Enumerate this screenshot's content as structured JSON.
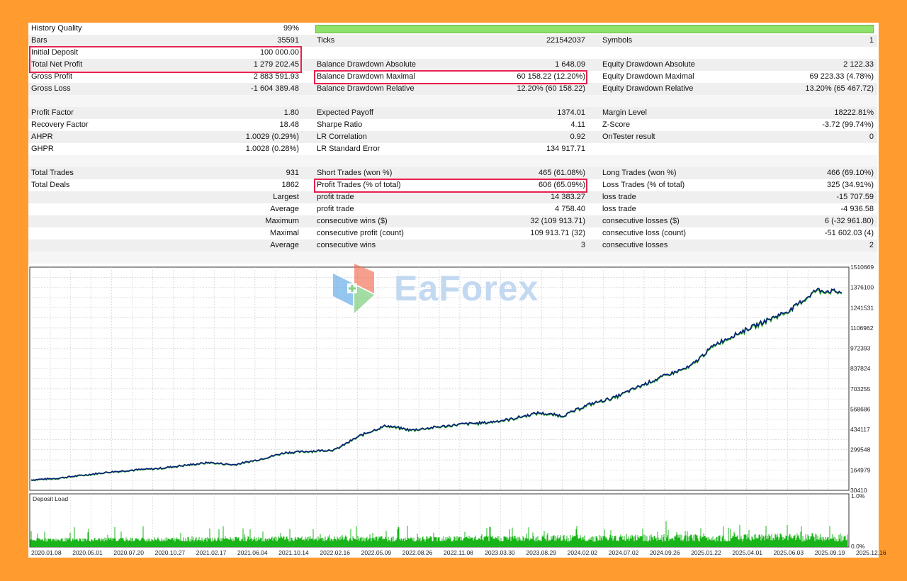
{
  "report": {
    "history_quality": {
      "label": "History Quality",
      "value": "99%"
    },
    "row_bars": {
      "c1l": "Bars",
      "c1v": "35591",
      "c2l": "Ticks",
      "c2v": "221542037",
      "c3l": "Symbols",
      "c3v": "1"
    },
    "row_deposit": {
      "c1l": "Initial Deposit",
      "c1v": "100 000.00"
    },
    "row_net": {
      "c1l": "Total Net Profit",
      "c1v": "1 279 202.45",
      "c2l": "Balance Drawdown Absolute",
      "c2v": "1 648.09",
      "c3l": "Equity Drawdown Absolute",
      "c3v": "2 122.33"
    },
    "row_gross_profit": {
      "c1l": "Gross Profit",
      "c1v": "2 883 591.93",
      "c2l": "Balance Drawdown Maximal",
      "c2v": "60 158.22 (12.20%)",
      "c3l": "Equity Drawdown Maximal",
      "c3v": "69 223.33 (4.78%)"
    },
    "row_gross_loss": {
      "c1l": "Gross Loss",
      "c1v": "-1 604 389.48",
      "c2l": "Balance Drawdown Relative",
      "c2v": "12.20% (60 158.22)",
      "c3l": "Equity Drawdown Relative",
      "c3v": "13.20% (65 467.72)"
    },
    "row_pf": {
      "c1l": "Profit Factor",
      "c1v": "1.80",
      "c2l": "Expected Payoff",
      "c2v": "1374.01",
      "c3l": "Margin Level",
      "c3v": "18222.81%"
    },
    "row_rf": {
      "c1l": "Recovery Factor",
      "c1v": "18.48",
      "c2l": "Sharpe Ratio",
      "c2v": "4.11",
      "c3l": "Z-Score",
      "c3v": "-3.72 (99.74%)"
    },
    "row_ahpr": {
      "c1l": "AHPR",
      "c1v": "1.0029 (0.29%)",
      "c2l": "LR Correlation",
      "c2v": "0.92",
      "c3l": "OnTester result",
      "c3v": "0"
    },
    "row_ghpr": {
      "c1l": "GHPR",
      "c1v": "1.0028 (0.28%)",
      "c2l": "LR Standard Error",
      "c2v": "134 917.71"
    },
    "row_trades": {
      "c1l": "Total Trades",
      "c1v": "931",
      "c2l": "Short Trades (won %)",
      "c2v": "465 (61.08%)",
      "c3l": "Long Trades (won %)",
      "c3v": "466 (69.10%)"
    },
    "row_deals": {
      "c1l": "Total Deals",
      "c1v": "1862",
      "c2l": "Profit Trades (% of total)",
      "c2v": "606 (65.09%)",
      "c3l": "Loss Trades (% of total)",
      "c3v": "325 (34.91%)"
    },
    "row_largest": {
      "c1r": "Largest",
      "c2l": "profit trade",
      "c2v": "14 383.27",
      "c3l": "loss trade",
      "c3v": "-15 707.59"
    },
    "row_average": {
      "c1r": "Average",
      "c2l": "profit trade",
      "c2v": "4 758.40",
      "c3l": "loss trade",
      "c3v": "-4 936.58"
    },
    "row_maximum": {
      "c1r": "Maximum",
      "c2l": "consecutive wins ($)",
      "c2v": "32 (109 913.71)",
      "c3l": "consecutive losses ($)",
      "c3v": "6 (-32 961.80)"
    },
    "row_maximal": {
      "c1r": "Maximal",
      "c2l": "consecutive profit (count)",
      "c2v": "109 913.71 (32)",
      "c3l": "consecutive loss (count)",
      "c3v": "-51 602.03 (4)"
    },
    "row_average2": {
      "c1r": "Average",
      "c2l": "consecutive wins",
      "c2v": "3",
      "c3l": "consecutive losses",
      "c3v": "2"
    }
  },
  "watermark": {
    "text": "EaForex"
  },
  "colors": {
    "balance": "#0a1f7a",
    "equity": "#1fa51f",
    "deposit_load": "#19b419",
    "highlight": "#e8204d",
    "quality_bar": "#8fe36a"
  },
  "chart_data": {
    "type": "line",
    "title": "",
    "y_ticks": [
      "1510669",
      "1376100",
      "1241531",
      "1106962",
      "972393",
      "837824",
      "703255",
      "568686",
      "434117",
      "299548",
      "164979",
      "30410"
    ],
    "ylim": [
      30410,
      1510669
    ],
    "x_ticks": [
      "2020.01.08",
      "2020.05.01",
      "2020.07.20",
      "2020.10.27",
      "2021.02.17",
      "2021.06.04",
      "2021.10.14",
      "2022.02.16",
      "2022.05.09",
      "2022.08.26",
      "2022.11.08",
      "2023.03.30",
      "2023.08.29",
      "2024.02.02",
      "2024.07.02",
      "2024.09.26",
      "2025.01.22",
      "2025.04.01",
      "2025.06.03",
      "2025.09.19",
      "2025.12.16"
    ],
    "series": [
      {
        "values": [
          100000,
          110000,
          130000,
          150000,
          165000,
          175000,
          195000,
          215000,
          200000,
          235000,
          280000,
          290000,
          300000,
          395000,
          460000,
          430000,
          450000,
          470000,
          480000,
          505000,
          545000,
          525000,
          600000,
          645000,
          720000,
          790000,
          850000,
          1000000,
          1080000,
          1155000,
          1230000,
          1360000,
          1345000
        ]
      }
    ],
    "deposit_load": {
      "label": "Deposit Load",
      "y_ticks": [
        "1.0%",
        "0.0%"
      ],
      "ylim": [
        0,
        1.0
      ],
      "typical_range": [
        0.1,
        0.3
      ]
    }
  }
}
